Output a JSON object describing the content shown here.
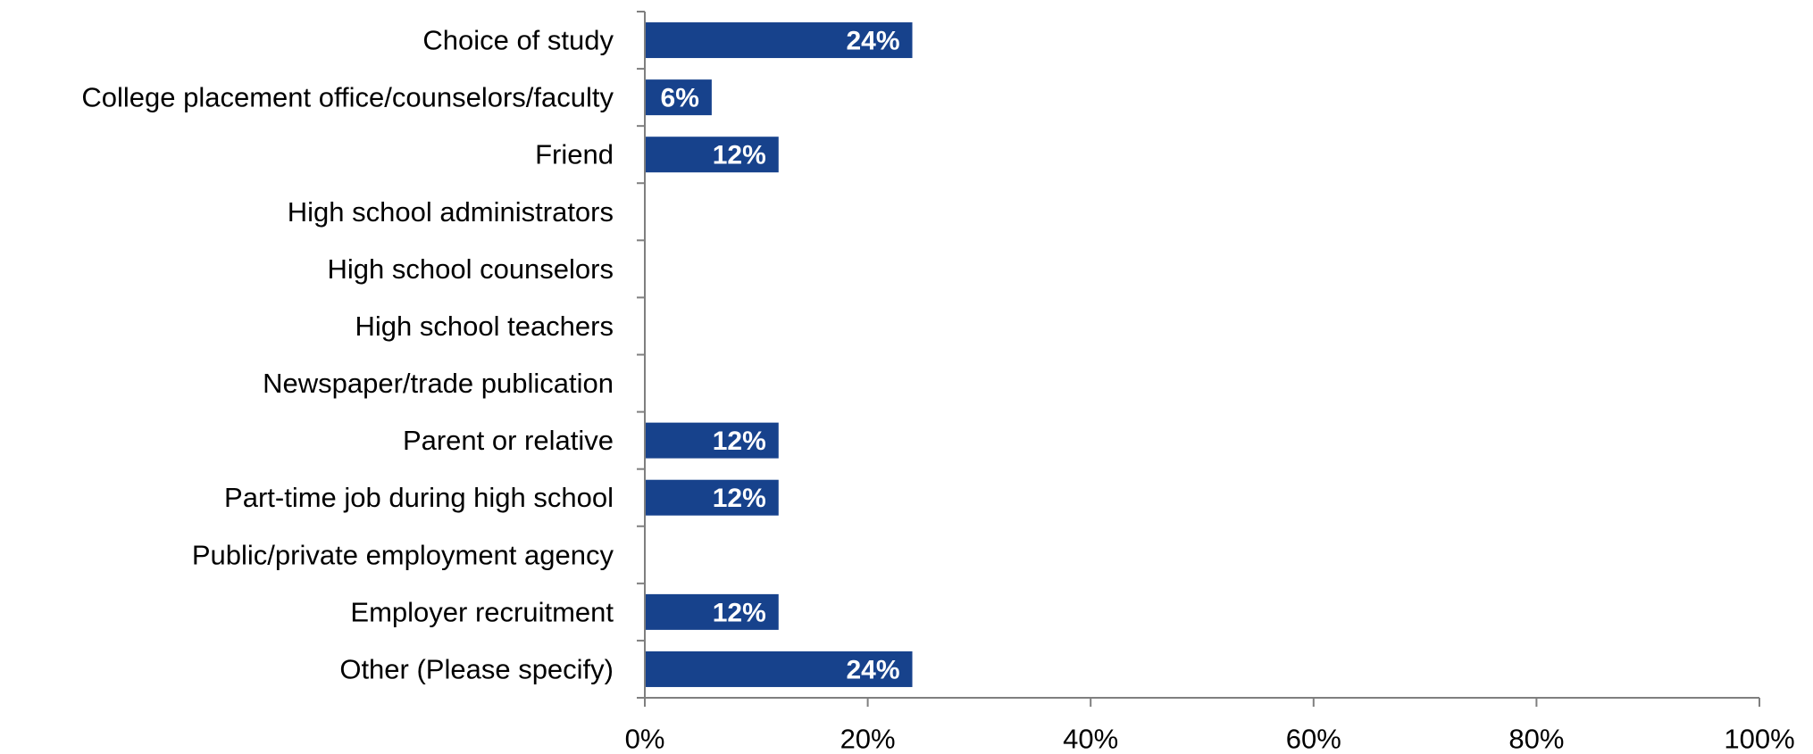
{
  "chart_data": {
    "type": "bar",
    "orientation": "horizontal",
    "categories": [
      "Choice of study",
      "College placement office/counselors/faculty",
      "Friend",
      "High school administrators",
      "High school counselors",
      "High school teachers",
      "Newspaper/trade publication",
      "Parent or relative",
      "Part-time job during high school",
      "Public/private employment agency",
      "Employer recruitment",
      "Other (Please specify)"
    ],
    "values": [
      24,
      6,
      12,
      0,
      0,
      0,
      0,
      12,
      12,
      0,
      12,
      24
    ],
    "data_labels": [
      "24%",
      "6%",
      "12%",
      "",
      "",
      "",
      "",
      "12%",
      "12%",
      "",
      "12%",
      "24%"
    ],
    "xlim": [
      0,
      100
    ],
    "x_ticks": [
      0,
      20,
      40,
      60,
      80,
      100
    ],
    "x_tick_labels": [
      "0%",
      "20%",
      "40%",
      "60%",
      "80%",
      "100%"
    ],
    "title": "",
    "xlabel": "",
    "ylabel": "",
    "grid": false,
    "legend": "none",
    "bar_color": "#17428C",
    "data_label_color": "#FFFFFF"
  }
}
